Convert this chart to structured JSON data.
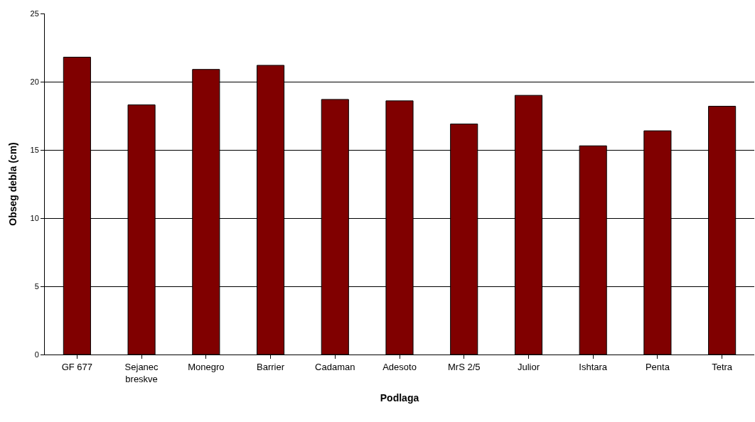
{
  "chart_data": {
    "type": "bar",
    "xlabel": "Podlaga",
    "ylabel": "Obseg debla (cm)",
    "categories": [
      "GF 677",
      "Sejanec\nbreskve",
      "Monegro",
      "Barrier",
      "Cadaman",
      "Adesoto",
      "MrS 2/5",
      "Julior",
      "Ishtara",
      "Penta",
      "Tetra"
    ],
    "values": [
      21.8,
      18.3,
      20.9,
      21.2,
      18.7,
      18.6,
      16.9,
      19.0,
      15.3,
      16.4,
      18.2
    ],
    "color": "#800000",
    "ylim": [
      0,
      25
    ],
    "yticks": [
      0,
      5,
      10,
      15,
      20,
      25
    ],
    "grid": "y"
  }
}
